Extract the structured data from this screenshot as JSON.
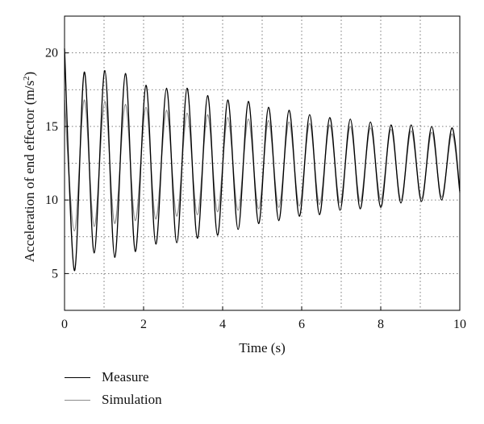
{
  "chart_data": {
    "type": "line",
    "xlabel": "Time (s)",
    "ylabel": "Acceleration of end effector (m/s",
    "ylabel_sup": "2",
    "ylabel_close": ")",
    "xlim": [
      0,
      10
    ],
    "ylim": [
      2.5,
      22.5
    ],
    "xticks": [
      0,
      2,
      4,
      6,
      8,
      10
    ],
    "yticks": [
      5,
      10,
      15,
      20
    ],
    "grid": "dotted",
    "legend_position": "bottom-left",
    "x": [
      0.0,
      0.25,
      0.5,
      0.75,
      1.02,
      1.27,
      1.54,
      1.79,
      2.06,
      2.31,
      2.58,
      2.84,
      3.1,
      3.36,
      3.62,
      3.87,
      4.13,
      4.39,
      4.65,
      4.91,
      5.16,
      5.42,
      5.68,
      5.94,
      6.2,
      6.45,
      6.71,
      6.97,
      7.23,
      7.48,
      7.74,
      8.0,
      8.26,
      8.51,
      8.77,
      9.03,
      9.29,
      9.54,
      9.8,
      10.0
    ],
    "series": [
      {
        "name": "Measure",
        "color": "#000000",
        "values": [
          20.3,
          5.2,
          18.7,
          6.4,
          18.8,
          6.1,
          18.6,
          6.5,
          17.8,
          7.0,
          17.6,
          7.1,
          17.6,
          7.4,
          17.1,
          7.6,
          16.8,
          8.0,
          16.7,
          8.4,
          16.3,
          8.6,
          16.1,
          8.9,
          15.8,
          9.0,
          15.6,
          9.3,
          15.5,
          9.4,
          15.3,
          9.5,
          15.1,
          9.8,
          15.1,
          9.9,
          15.0,
          10.0,
          14.9,
          10.6
        ]
      },
      {
        "name": "Simulation",
        "color": "#8c8c8c",
        "values": [
          16.8,
          7.9,
          16.8,
          8.2,
          16.7,
          8.4,
          16.5,
          8.6,
          16.3,
          8.7,
          16.1,
          8.9,
          15.9,
          9.0,
          15.8,
          9.2,
          15.6,
          9.3,
          15.5,
          9.4,
          15.4,
          9.5,
          15.3,
          9.6,
          15.2,
          9.7,
          15.1,
          9.8,
          15.0,
          9.9,
          14.9,
          10.0,
          14.8,
          10.0,
          14.7,
          10.1,
          14.6,
          10.2,
          14.5,
          10.5
        ]
      }
    ]
  }
}
